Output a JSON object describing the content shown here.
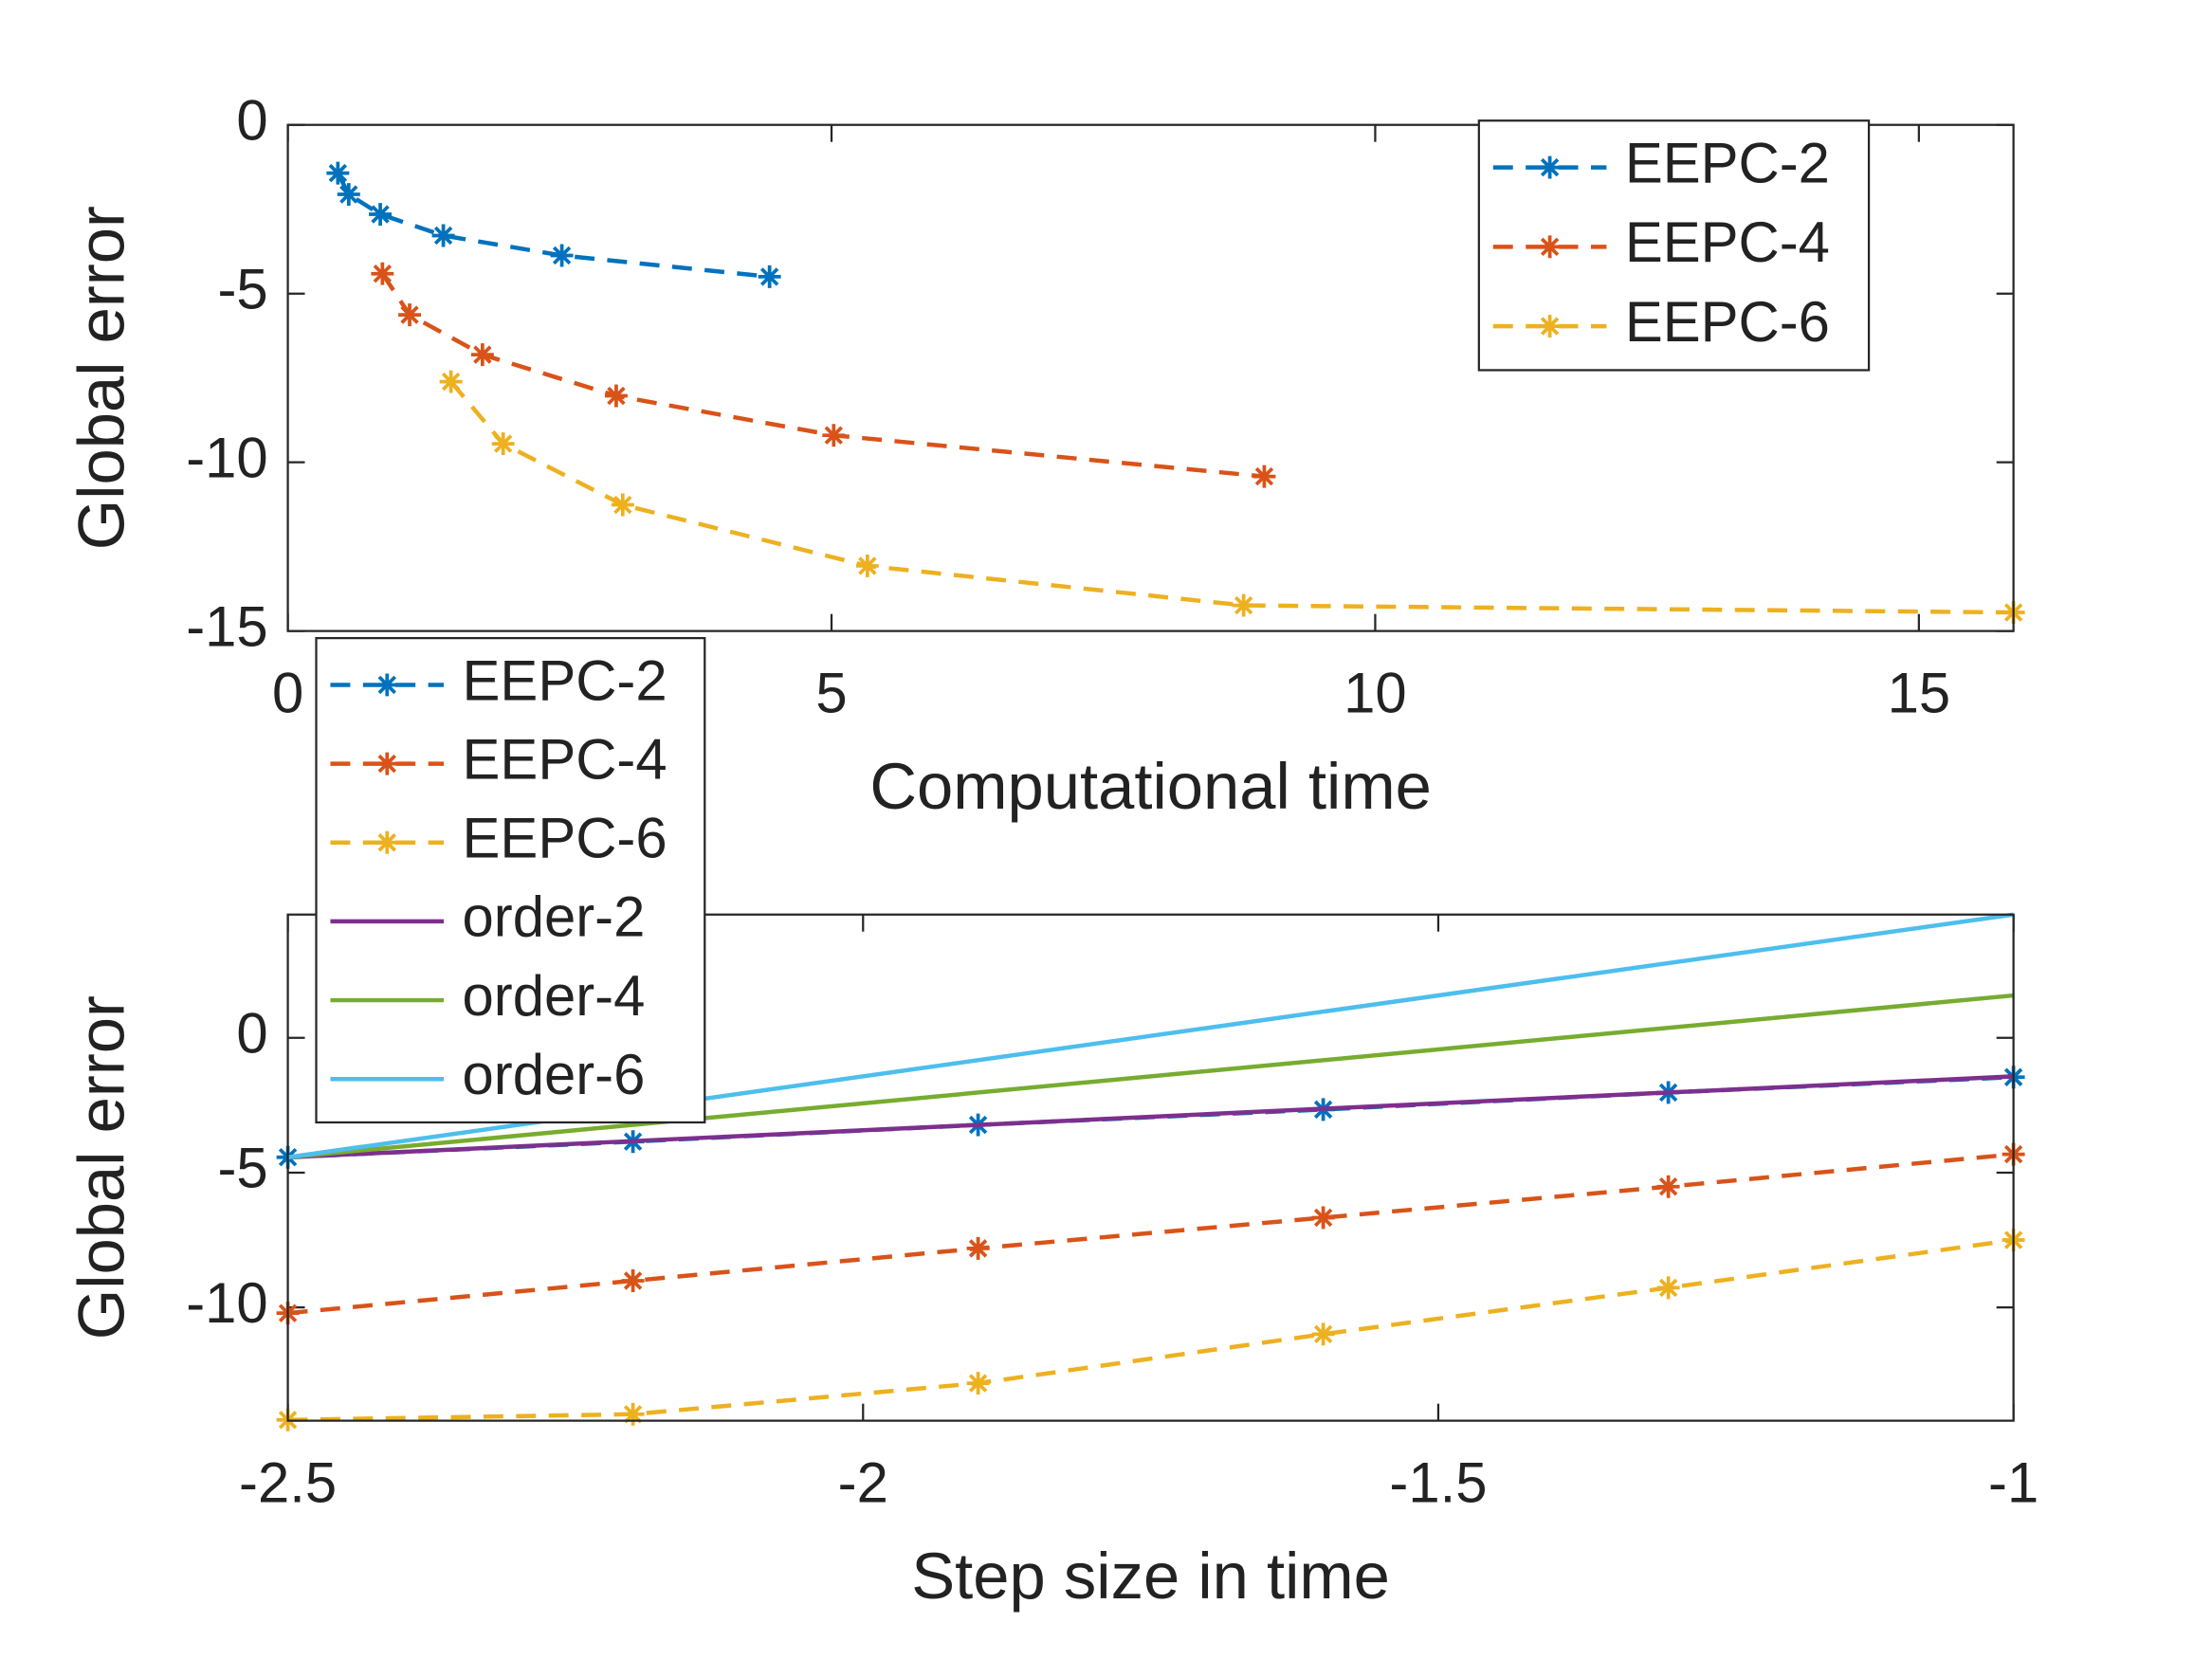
{
  "chart_data": [
    {
      "type": "line",
      "xlabel": "Computational time",
      "ylabel": "Global error",
      "xlim": [
        0,
        15.87
      ],
      "ylim": [
        -15,
        0
      ],
      "xticks": [
        0,
        5,
        10,
        15
      ],
      "yticks": [
        0,
        -5,
        -10,
        -15
      ],
      "legend": "northeast",
      "series": [
        {
          "name": "EEPC-2",
          "color": "#0072BD",
          "line_style": "dashed",
          "marker": "*",
          "x": [
            0.46,
            0.56,
            0.85,
            1.43,
            2.52,
            4.43
          ],
          "values": [
            -1.43,
            -2.06,
            -2.65,
            -3.28,
            -3.87,
            -4.5
          ]
        },
        {
          "name": "EEPC-4",
          "color": "#D95319",
          "line_style": "dashed",
          "marker": "*",
          "x": [
            0.87,
            1.12,
            1.79,
            3.02,
            5.02,
            8.98
          ],
          "values": [
            -4.41,
            -5.63,
            -6.81,
            -8.03,
            -9.2,
            -10.42
          ]
        },
        {
          "name": "EEPC-6",
          "color": "#EDB120",
          "line_style": "dashed",
          "marker": "*",
          "x": [
            1.5,
            1.98,
            3.08,
            5.33,
            8.79,
            15.87
          ],
          "values": [
            -7.61,
            -9.45,
            -11.26,
            -13.07,
            -14.24,
            -14.45
          ]
        }
      ]
    },
    {
      "type": "line",
      "xlabel": "Step size in time",
      "ylabel": "Global error",
      "xlim": [
        -2.5,
        -1
      ],
      "ylim": [
        -14.2,
        4.57
      ],
      "xticks": [
        -2.5,
        -2,
        -1.5,
        -1
      ],
      "yticks": [
        0,
        -5,
        -10
      ],
      "legend": "northwest",
      "series": [
        {
          "name": "EEPC-2",
          "color": "#0072BD",
          "line_style": "dashed",
          "marker": "*",
          "x": [
            -2.5,
            -2.2,
            -1.9,
            -1.6,
            -1.3,
            -1
          ],
          "values": [
            -4.43,
            -3.85,
            -3.23,
            -2.66,
            -2.03,
            -1.46
          ]
        },
        {
          "name": "EEPC-4",
          "color": "#D95319",
          "line_style": "dashed",
          "marker": "*",
          "x": [
            -2.5,
            -2.2,
            -1.9,
            -1.6,
            -1.3,
            -1
          ],
          "values": [
            -10.21,
            -9.01,
            -7.81,
            -6.67,
            -5.52,
            -4.32
          ]
        },
        {
          "name": "EEPC-6",
          "color": "#EDB120",
          "line_style": "dashed",
          "marker": "*",
          "x": [
            -2.5,
            -2.2,
            -1.9,
            -1.6,
            -1.3,
            -1
          ],
          "values": [
            -14.17,
            -13.96,
            -12.81,
            -10.99,
            -9.27,
            -7.5
          ]
        },
        {
          "name": "order-2",
          "color": "#7E2F8E",
          "line_style": "solid",
          "marker": "none",
          "x": [
            -2.5,
            -1
          ],
          "values": [
            -4.43,
            -1.43
          ]
        },
        {
          "name": "order-4",
          "color": "#77AC30",
          "line_style": "solid",
          "marker": "none",
          "x": [
            -2.5,
            -1
          ],
          "values": [
            -4.43,
            1.57
          ]
        },
        {
          "name": "order-6",
          "color": "#4DBEEE",
          "line_style": "solid",
          "marker": "none",
          "x": [
            -2.5,
            -1
          ],
          "values": [
            -4.43,
            4.57
          ]
        }
      ]
    }
  ]
}
